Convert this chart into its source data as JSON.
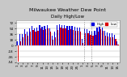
{
  "title": "Milwaukee Weather Dew Point",
  "subtitle": "Daily High/Low",
  "background_color": "#c8c8c8",
  "plot_bg_color": "#ffffff",
  "left_panel_color": "#1a1a1a",
  "ylim": [
    -54,
    81
  ],
  "yticks": [
    -54,
    -36,
    -18,
    0,
    18,
    36,
    54,
    72
  ],
  "ytick_labels": [
    "-54",
    "-36",
    "-18",
    "0",
    "18",
    "36",
    "54",
    "72"
  ],
  "legend_labels": [
    "High",
    "Low"
  ],
  "legend_colors": [
    "#0000dd",
    "#dd0000"
  ],
  "bar_width": 0.85,
  "n_bars": 41,
  "high": [
    14,
    36,
    36,
    52,
    43,
    55,
    62,
    55,
    58,
    66,
    61,
    63,
    65,
    55,
    30,
    43,
    65,
    67,
    65,
    65,
    62,
    63,
    62,
    60,
    58,
    57,
    22,
    55,
    52,
    48,
    44,
    48,
    57,
    63,
    58,
    46,
    42,
    40,
    40,
    35,
    14
  ],
  "low": [
    -52,
    14,
    25,
    36,
    32,
    43,
    50,
    43,
    47,
    55,
    50,
    52,
    54,
    43,
    18,
    27,
    50,
    56,
    54,
    54,
    50,
    52,
    50,
    48,
    46,
    44,
    9,
    40,
    38,
    34,
    30,
    34,
    44,
    52,
    46,
    32,
    28,
    26,
    26,
    20,
    3
  ],
  "dashed_vlines_x": [
    27.5,
    30.5
  ],
  "xtick_positions": [
    1,
    3,
    5,
    7,
    9,
    11,
    13,
    15,
    17,
    19,
    21,
    23,
    25,
    27,
    29,
    31,
    33,
    35,
    37,
    39,
    41
  ],
  "xtick_labels": [
    "1",
    "3",
    "5",
    "7",
    "9",
    "11",
    "13",
    "15",
    "17",
    "19",
    "21",
    "23",
    "25",
    "1",
    "3",
    "5",
    "7",
    "9",
    "11",
    "13",
    "15"
  ],
  "title_fontsize": 4.5,
  "tick_fontsize": 3.0,
  "legend_fontsize": 3.0
}
